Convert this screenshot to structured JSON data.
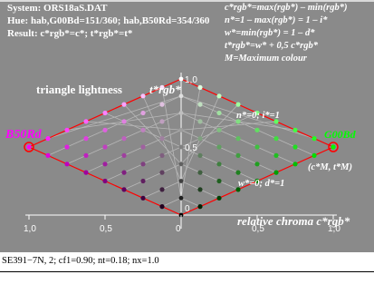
{
  "header": {
    "system": "System: ORS18aS.DAT",
    "hue": "Hue: hab,G00Bd=151/360; hab,B50Rd=354/360",
    "result": "Result: c*rgb*=c*; t*rgb*=t*"
  },
  "formulas": [
    "c*rgb*=max(rgb*) – min(rgb*)",
    "n*=1 – max(rgb*) = 1 – i*",
    "w*=min(rgb*) = 1 – d*",
    "t*rgb*=w* + 0,5 c*rgb*",
    "M=Maximum colour"
  ],
  "labels": {
    "triangle_lightness": "triangle lightness",
    "t_axis": "t*rgb*",
    "left_color": "B50Rd",
    "right_color": "G00Bd",
    "top_corner": "n*=0; i*=1",
    "bottom_corner": "w*=0; d*=1",
    "max_colour": "(c*M, t*M)",
    "x_axis_label": "relative chroma  c*rgb*"
  },
  "footer": "SE391−7N, 2; cf1=0.90; nt=0.18; nx=1.0",
  "chart_data": {
    "type": "scatter",
    "title": "",
    "x_ticks": [
      "1,0",
      "0,5",
      "0",
      "0,5",
      "1,0"
    ],
    "y_ticks": [
      "1,0",
      "0,5",
      "0"
    ],
    "x_range": [
      -1.0,
      1.0
    ],
    "y_range": [
      0,
      1.0
    ],
    "grid_steps": 8,
    "colors": {
      "left_max": "#ff00ff",
      "right_max": "#00ff00",
      "white": "#ffffff",
      "black": "#000000",
      "outline": "#ff0000",
      "center_line": "#ffffff"
    },
    "series": [
      {
        "name": "B50Rd",
        "side": "left",
        "c_max": 1.0,
        "t_max": 0.5
      },
      {
        "name": "G00Bd",
        "side": "right",
        "c_max": 1.0,
        "t_max": 0.5
      }
    ]
  }
}
